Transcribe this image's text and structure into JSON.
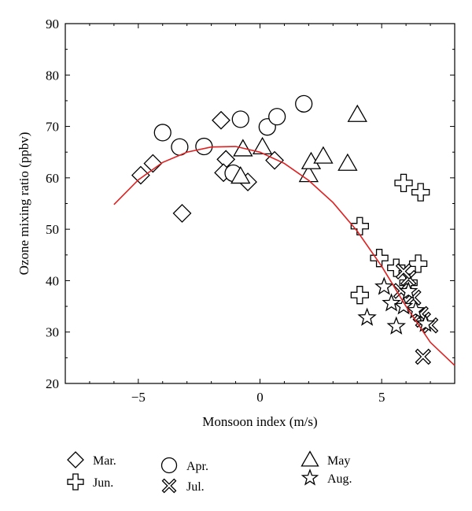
{
  "chart_data": {
    "type": "scatter",
    "title": "",
    "xlabel": "Monsoon index (m/s)",
    "ylabel": "Ozone mixing ratio (ppbv)",
    "xlim": [
      -8,
      8
    ],
    "ylim": [
      20,
      90
    ],
    "xticks": [
      -5,
      0,
      5
    ],
    "yticks": [
      20,
      30,
      40,
      50,
      60,
      70,
      80,
      90
    ],
    "grid": false,
    "legend_placement": "bottom",
    "series": [
      {
        "name": "Mar.",
        "marker": "diamond",
        "points": [
          [
            -4.9,
            60.5
          ],
          [
            -4.4,
            62.8
          ],
          [
            -3.2,
            53.1
          ],
          [
            -1.6,
            71.2
          ],
          [
            -1.4,
            63.6
          ],
          [
            -1.5,
            61.0
          ],
          [
            -0.5,
            59.2
          ],
          [
            0.6,
            63.4
          ]
        ]
      },
      {
        "name": "Apr.",
        "marker": "circle",
        "points": [
          [
            -4.0,
            68.8
          ],
          [
            -3.3,
            66.0
          ],
          [
            -2.3,
            66.1
          ],
          [
            -0.8,
            71.4
          ],
          [
            -1.1,
            60.9
          ],
          [
            0.3,
            69.9
          ],
          [
            0.7,
            71.9
          ],
          [
            1.8,
            74.4
          ]
        ]
      },
      {
        "name": "May",
        "marker": "triangle",
        "points": [
          [
            -0.8,
            60.3
          ],
          [
            -0.7,
            65.6
          ],
          [
            0.1,
            66.0
          ],
          [
            2.0,
            60.6
          ],
          [
            2.1,
            63.1
          ],
          [
            2.6,
            64.2
          ],
          [
            3.6,
            62.8
          ],
          [
            4.0,
            72.3
          ]
        ]
      },
      {
        "name": "Jun.",
        "marker": "plus",
        "points": [
          [
            4.1,
            37.2
          ],
          [
            4.1,
            50.6
          ],
          [
            4.9,
            44.4
          ],
          [
            5.6,
            42.5
          ],
          [
            5.9,
            59.0
          ],
          [
            6.6,
            57.2
          ],
          [
            6.5,
            43.3
          ],
          [
            6.1,
            39.6
          ]
        ]
      },
      {
        "name": "Jul.",
        "marker": "cross",
        "points": [
          [
            5.8,
            38.0
          ],
          [
            6.1,
            40.5
          ],
          [
            6.3,
            36.7
          ],
          [
            6.7,
            32.4
          ],
          [
            6.7,
            25.2
          ],
          [
            7.0,
            31.3
          ],
          [
            6.6,
            33.5
          ],
          [
            5.9,
            41.8
          ]
        ]
      },
      {
        "name": "Aug.",
        "marker": "star",
        "points": [
          [
            4.4,
            32.8
          ],
          [
            5.1,
            38.8
          ],
          [
            5.4,
            35.6
          ],
          [
            5.6,
            31.1
          ],
          [
            5.9,
            35.0
          ],
          [
            6.1,
            37.9
          ],
          [
            6.4,
            34.2
          ],
          [
            6.8,
            31.6
          ]
        ]
      }
    ],
    "fit_curve": {
      "color": "#e02020",
      "type": "quadratic",
      "x_range": [
        -6,
        8
      ],
      "points": [
        [
          -6,
          54.8
        ],
        [
          -5,
          59.6
        ],
        [
          -4,
          63.0
        ],
        [
          -3,
          65.0
        ],
        [
          -2,
          66.0
        ],
        [
          -1,
          66.1
        ],
        [
          0,
          65.0
        ],
        [
          1,
          62.8
        ],
        [
          2,
          59.5
        ],
        [
          3,
          55.2
        ],
        [
          4,
          49.6
        ],
        [
          5,
          42.8
        ],
        [
          6,
          35.0
        ],
        [
          7,
          28.0
        ],
        [
          8,
          23.5
        ]
      ]
    }
  }
}
